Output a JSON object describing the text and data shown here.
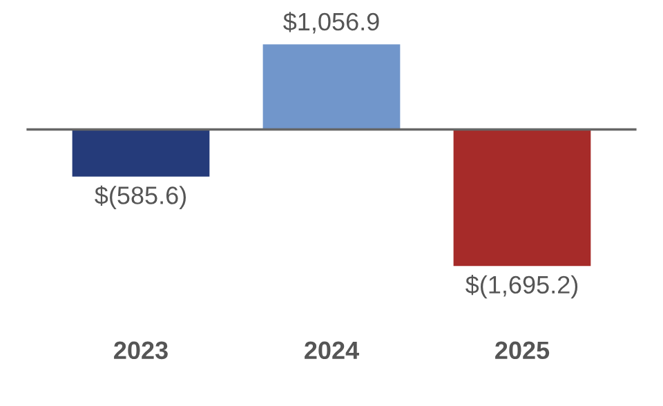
{
  "chart_data": {
    "type": "bar",
    "categories": [
      "2023",
      "2024",
      "2025"
    ],
    "values": [
      -585.6,
      1056.9,
      -1695.2
    ],
    "colors": [
      "#253b7a",
      "#7196cb",
      "#a62b29"
    ],
    "value_labels": [
      "$(585.6)",
      "$1,056.9",
      "$(1,695.2)"
    ],
    "grid": false,
    "legend": false
  }
}
